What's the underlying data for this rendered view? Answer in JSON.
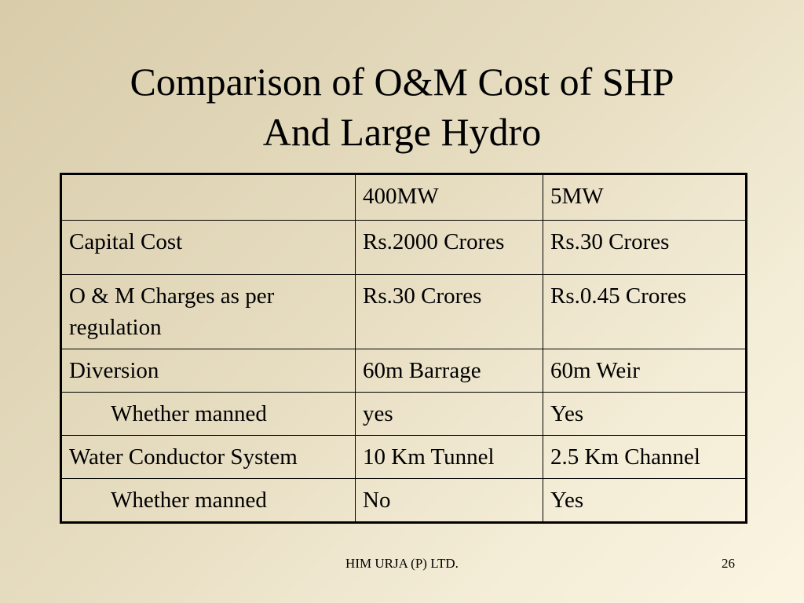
{
  "title": {
    "line1": "Comparison of O&M Cost of SHP",
    "line2": "And Large Hydro"
  },
  "table": {
    "header": [
      "",
      "400MW",
      "5MW"
    ],
    "rows": [
      [
        "Capital Cost",
        "Rs.2000 Crores",
        "Rs.30 Crores"
      ],
      [
        "O & M Charges as per regulation",
        "Rs.30 Crores",
        "Rs.0.45 Crores"
      ],
      [
        "Diversion",
        "60m Barrage",
        "60m Weir"
      ],
      [
        "Whether manned",
        "yes",
        "Yes"
      ],
      [
        "Water Conductor System",
        "10 Km Tunnel",
        "2.5 Km Channel"
      ],
      [
        "Whether manned",
        "No",
        "Yes"
      ]
    ]
  },
  "footer": {
    "company": "HIM URJA (P) LTD.",
    "page_number": "26"
  }
}
